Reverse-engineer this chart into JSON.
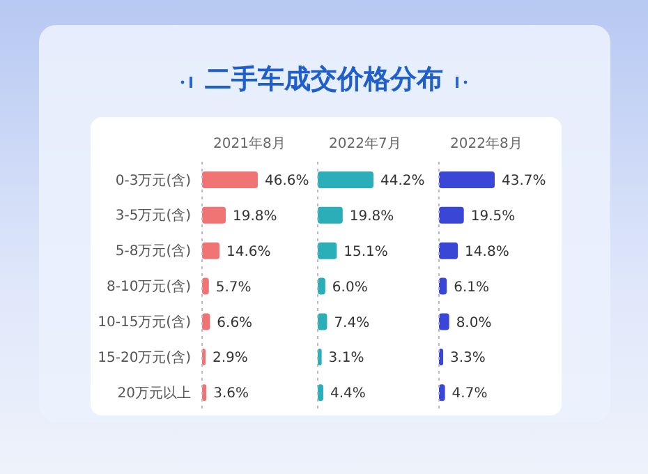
{
  "chart_data": [
    {
      "type": "bar",
      "orientation": "horizontal",
      "title": "二手车成交价格分布",
      "subtitle": "2021年8月",
      "tick_labels": "y",
      "categories": [
        "0-3万元(含)",
        "3-5万元(含)",
        "5-8万元(含)",
        "8-10万元(含)",
        "10-15万元(含)",
        "15-20万元(含)",
        "20万元以上"
      ],
      "color": "#f07474",
      "values": [
        46.6,
        19.8,
        14.6,
        5.7,
        6.6,
        2.9,
        3.6
      ],
      "value_labels": [
        "46.6%",
        "19.8%",
        "14.6%",
        "5.7%",
        "6.6%",
        "2.9%",
        "3.6%"
      ]
    },
    {
      "type": "bar",
      "orientation": "horizontal",
      "subtitle": "2022年7月",
      "tick_labels": false,
      "categories": [
        null,
        null,
        null,
        null,
        null,
        null,
        null
      ],
      "color": "#2aaeb8",
      "values": [
        44.2,
        19.8,
        15.1,
        6.0,
        7.4,
        3.1,
        4.4
      ],
      "value_labels": [
        "44.2%",
        "19.8%",
        "15.1%",
        "6.0%",
        "7.4%",
        "3.1%",
        "4.4%"
      ]
    },
    {
      "type": "bar",
      "orientation": "horizontal",
      "subtitle": "2022年8月",
      "tick_labels": false,
      "categories": [
        null,
        null,
        null,
        null,
        null,
        null,
        null
      ],
      "color": "#3a46d6",
      "values": [
        43.7,
        19.5,
        14.8,
        6.1,
        8.0,
        3.3,
        4.7
      ],
      "value_labels": [
        "43.7%",
        "19.5%",
        "14.8%",
        "6.1%",
        "8.0%",
        "3.3%",
        "4.7%"
      ]
    }
  ]
}
